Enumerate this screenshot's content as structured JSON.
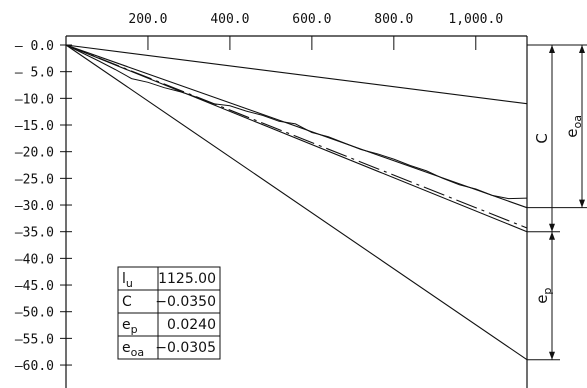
{
  "chart_data": {
    "type": "line",
    "x_ticks": [
      "200.0",
      "400.0",
      "600.0",
      "800.0",
      "1,000.0"
    ],
    "x_tick_values": [
      200,
      400,
      600,
      800,
      1000
    ],
    "y_ticks": [
      "– 0.0",
      "– 5.0",
      "–10.0",
      "–15.0",
      "–20.0",
      "–25.0",
      "–30.0",
      "–35.0",
      "–40.0",
      "–45.0",
      "–50.0",
      "–55.0",
      "–60.0"
    ],
    "y_tick_values": [
      0,
      -5,
      -10,
      -15,
      -20,
      -25,
      -30,
      -35,
      -40,
      -45,
      -50,
      -55,
      -60
    ],
    "xlim": [
      0,
      1125
    ],
    "ylim": [
      -61.5,
      0.5
    ],
    "series": [
      {
        "style": "solid",
        "x": [
          0,
          1125
        ],
        "y": [
          0,
          -11.0
        ]
      },
      {
        "style": "solid",
        "x": [
          0,
          1125
        ],
        "y": [
          0,
          -30.5
        ]
      },
      {
        "style": "solid",
        "x": [
          0,
          1125
        ],
        "y": [
          0,
          -35.0
        ]
      },
      {
        "style": "solid",
        "x": [
          0,
          1125
        ],
        "y": [
          0,
          -59.0
        ]
      },
      {
        "style": "dashdot",
        "x": [
          0,
          1125
        ],
        "y": [
          0,
          -34.3
        ]
      },
      {
        "style": "noisy",
        "x": [
          0,
          40,
          80,
          120,
          160,
          200,
          240,
          280,
          320,
          360,
          400,
          440,
          480,
          520,
          560,
          600,
          640,
          680,
          720,
          760,
          800,
          840,
          880,
          920,
          960,
          1000,
          1040,
          1080,
          1125
        ],
        "y": [
          0,
          -1.5,
          -3.0,
          -4.6,
          -6.3,
          -7.0,
          -8.0,
          -8.8,
          -9.8,
          -11.0,
          -11.4,
          -12.4,
          -13.2,
          -14.3,
          -14.8,
          -16.4,
          -17.2,
          -18.4,
          -19.6,
          -20.4,
          -21.4,
          -22.6,
          -23.6,
          -25.0,
          -26.2,
          -27.0,
          -28.2,
          -28.8,
          -28.7
        ]
      }
    ],
    "table": [
      {
        "label": "l",
        "sub": "u",
        "value": "1125.00"
      },
      {
        "label": "C",
        "sub": "",
        "value": "−0.0350"
      },
      {
        "label": "e",
        "sub": "p",
        "value": "0.0240"
      },
      {
        "label": "e",
        "sub": "oa",
        "value": "−0.0305"
      }
    ],
    "dimension_labels": {
      "C": {
        "label": "C",
        "sub": "",
        "from": 0,
        "to": -35.0
      },
      "e_oa": {
        "label": "e",
        "sub": "oa",
        "from": 0,
        "to": -30.5
      },
      "e_p": {
        "label": "e",
        "sub": "p",
        "from": -35.0,
        "to": -59.0
      }
    }
  }
}
